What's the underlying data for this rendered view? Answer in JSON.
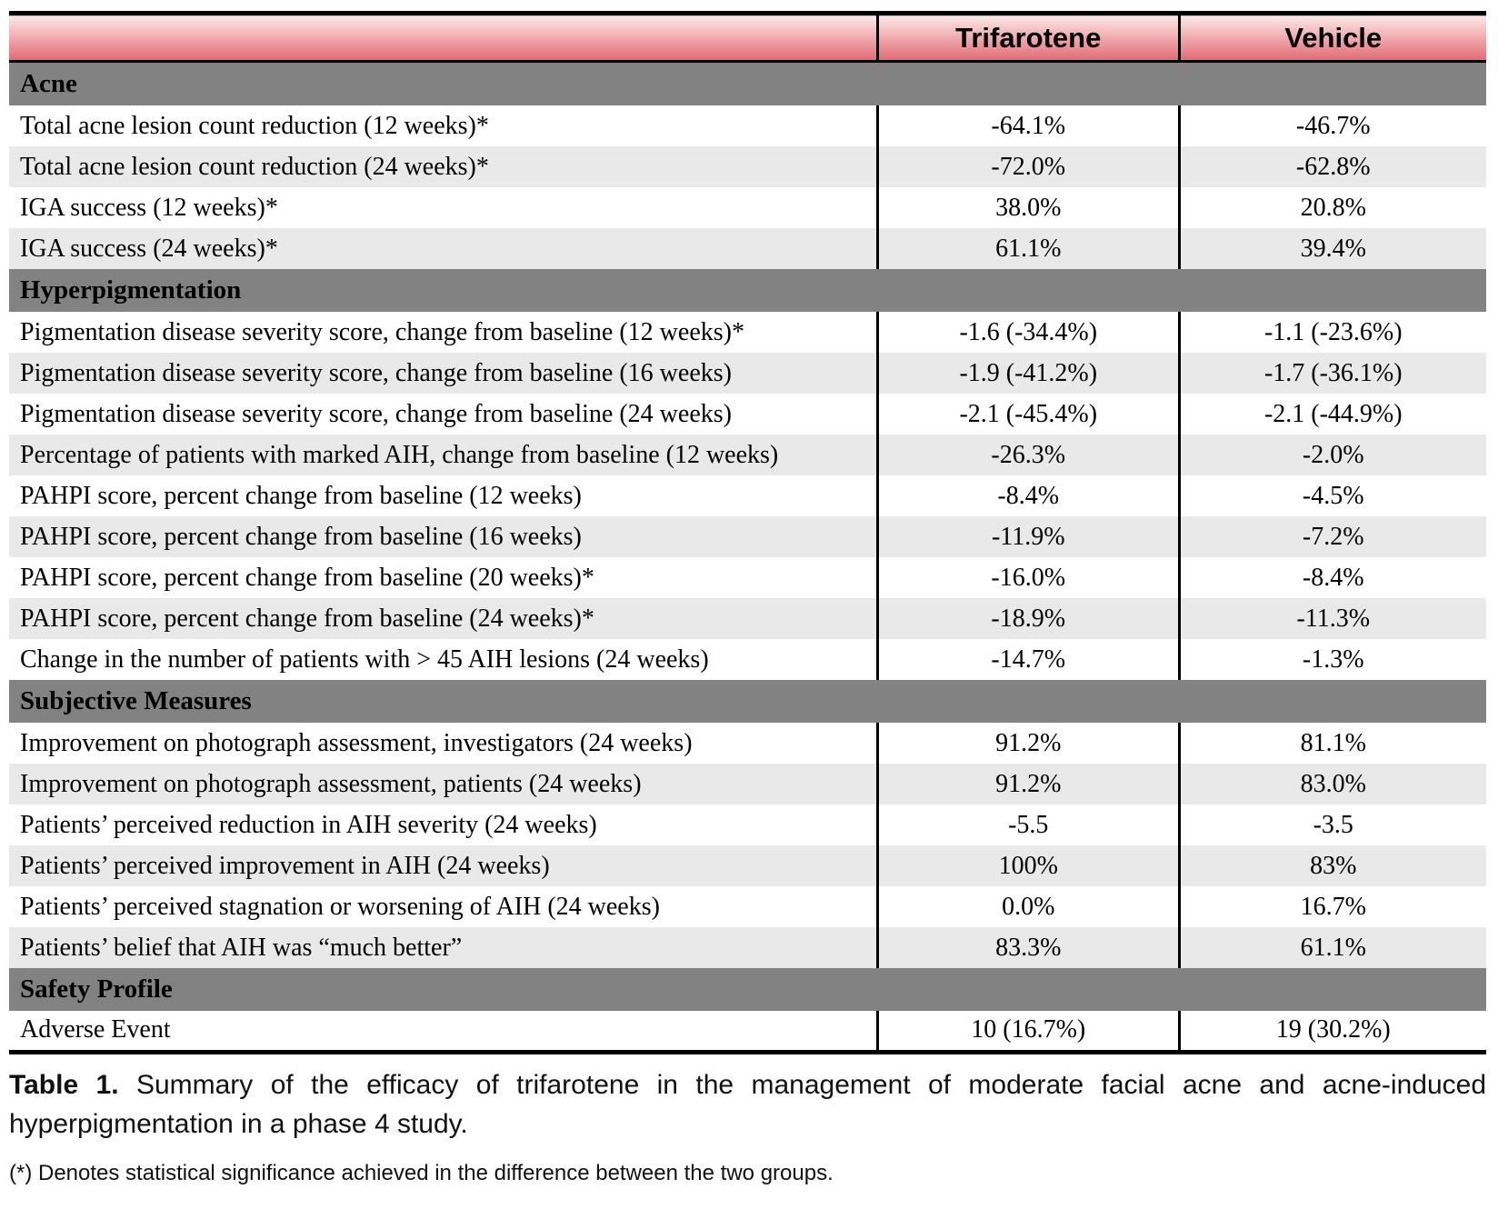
{
  "colors": {
    "header_gradient_top": "#fae9e8",
    "header_gradient_mid": "#efa3a8",
    "header_gradient_bottom": "#e06b75",
    "section_bar": "#828282",
    "shaded_row": "#e9e9e9"
  },
  "table": {
    "columns": {
      "trifarotene": "Trifarotene",
      "vehicle": "Vehicle"
    },
    "sections": [
      {
        "title": "Acne",
        "rows": [
          {
            "label": "Total acne lesion count reduction (12 weeks)*",
            "trifarotene": "-64.1%",
            "vehicle": "-46.7%"
          },
          {
            "label": "Total acne lesion count reduction (24 weeks)*",
            "trifarotene": "-72.0%",
            "vehicle": "-62.8%"
          },
          {
            "label": "IGA success (12 weeks)*",
            "trifarotene": "38.0%",
            "vehicle": "20.8%"
          },
          {
            "label": "IGA success (24 weeks)*",
            "trifarotene": "61.1%",
            "vehicle": "39.4%"
          }
        ]
      },
      {
        "title": "Hyperpigmentation",
        "rows": [
          {
            "label": "Pigmentation disease severity score, change from baseline (12 weeks)*",
            "trifarotene": "-1.6 (-34.4%)",
            "vehicle": "-1.1 (-23.6%)"
          },
          {
            "label": "Pigmentation disease severity score, change from baseline (16 weeks)",
            "trifarotene": "-1.9 (-41.2%)",
            "vehicle": "-1.7 (-36.1%)"
          },
          {
            "label": "Pigmentation disease severity score, change from baseline (24 weeks)",
            "trifarotene": "-2.1 (-45.4%)",
            "vehicle": "-2.1 (-44.9%)"
          },
          {
            "label": "Percentage of patients with marked AIH, change from baseline (12 weeks)",
            "trifarotene": "-26.3%",
            "vehicle": "-2.0%"
          },
          {
            "label": "PAHPI score, percent change from baseline (12 weeks)",
            "trifarotene": "-8.4%",
            "vehicle": "-4.5%"
          },
          {
            "label": "PAHPI score, percent change from baseline (16 weeks)",
            "trifarotene": "-11.9%",
            "vehicle": "-7.2%"
          },
          {
            "label": "PAHPI score, percent change from baseline (20 weeks)*",
            "trifarotene": "-16.0%",
            "vehicle": "-8.4%"
          },
          {
            "label": "PAHPI score, percent change from baseline (24 weeks)*",
            "trifarotene": "-18.9%",
            "vehicle": "-11.3%"
          },
          {
            "label": "Change in the number of patients with > 45 AIH lesions (24 weeks)",
            "trifarotene": "-14.7%",
            "vehicle": "-1.3%"
          }
        ]
      },
      {
        "title": "Subjective Measures",
        "rows": [
          {
            "label": "Improvement on photograph assessment, investigators (24 weeks)",
            "trifarotene": "91.2%",
            "vehicle": "81.1%"
          },
          {
            "label": "Improvement on photograph assessment, patients (24 weeks)",
            "trifarotene": "91.2%",
            "vehicle": "83.0%"
          },
          {
            "label": "Patients’ perceived reduction in AIH severity (24 weeks)",
            "trifarotene": "-5.5",
            "vehicle": "-3.5"
          },
          {
            "label": "Patients’ perceived improvement in AIH (24 weeks)",
            "trifarotene": "100%",
            "vehicle": "83%"
          },
          {
            "label": "Patients’ perceived stagnation or worsening of AIH (24 weeks)",
            "trifarotene": "0.0%",
            "vehicle": "16.7%"
          },
          {
            "label": "Patients’ belief that AIH was “much better”",
            "trifarotene": "83.3%",
            "vehicle": "61.1%"
          }
        ]
      },
      {
        "title": "Safety Profile",
        "rows": [
          {
            "label": "Adverse Event",
            "trifarotene": "10 (16.7%)",
            "vehicle": "19 (30.2%)"
          }
        ]
      }
    ]
  },
  "caption": {
    "label": "Table 1.",
    "text": " Summary of the efficacy of trifarotene in the management of moderate facial acne and acne-induced hyperpigmentation in a phase 4 study."
  },
  "footnote": "(*) Denotes statistical significance achieved in the difference between the two groups."
}
